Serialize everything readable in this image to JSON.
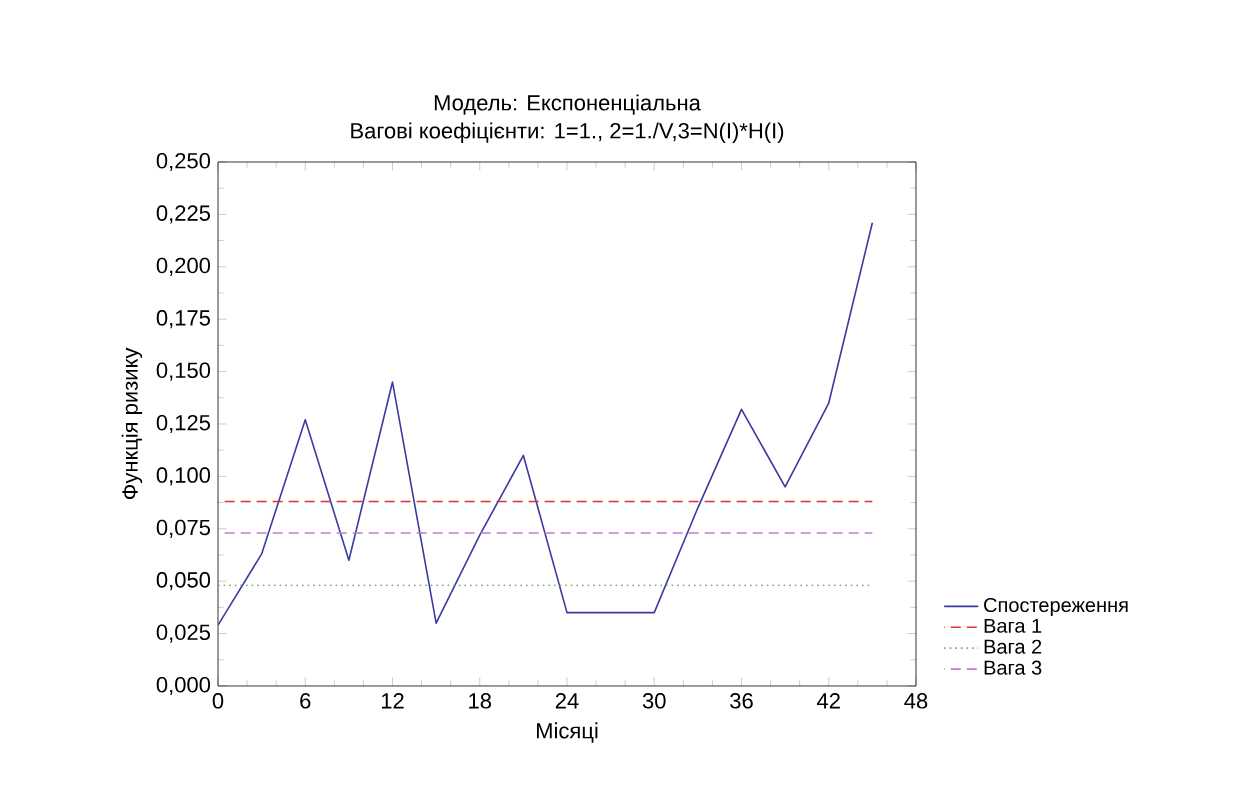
{
  "chart_data": {
    "type": "line",
    "title": "Модель: Експоненціальна",
    "subtitle": "Вагові коефіцієнти: 1=1., 2=1./V,3=N(I)*H(I)",
    "xlabel": "Місяці",
    "ylabel": "Функція ризику",
    "xlim": [
      0,
      48
    ],
    "xticks": [
      0,
      6,
      12,
      18,
      24,
      30,
      36,
      42,
      48
    ],
    "ylim": [
      0,
      0.25
    ],
    "yticks": [
      {
        "value": 0,
        "label": "0,000"
      },
      {
        "value": 0.025,
        "label": "0,025"
      },
      {
        "value": 0.05,
        "label": "0,050"
      },
      {
        "value": 0.075,
        "label": "0,075"
      },
      {
        "value": 0.1,
        "label": "0,100"
      },
      {
        "value": 0.125,
        "label": "0,125"
      },
      {
        "value": 0.15,
        "label": "0,150"
      },
      {
        "value": 0.175,
        "label": "0,175"
      },
      {
        "value": 0.2,
        "label": "0,200"
      },
      {
        "value": 0.225,
        "label": "0,225"
      },
      {
        "value": 0.25,
        "label": "0,250"
      }
    ],
    "grid": false,
    "legend": "bottom right",
    "marker": "none",
    "series": [
      {
        "name": "Спостереження",
        "color": "#3a3aa0",
        "line_style": "solid",
        "x": [
          0,
          3,
          6,
          9,
          12,
          15,
          18,
          21,
          24,
          27,
          30,
          33,
          36,
          39,
          42,
          45
        ],
        "values": [
          0.029,
          0.063,
          0.127,
          0.06,
          0.145,
          0.03,
          0.072,
          0.11,
          0.035,
          0.035,
          0.035,
          0.085,
          0.132,
          0.095,
          0.135,
          0.221
        ]
      },
      {
        "name": "Вага 1",
        "color": "#e03030",
        "line_style": "dashed",
        "x": [
          0,
          45
        ],
        "values": [
          0.088,
          0.088
        ]
      },
      {
        "name": "Вага 2",
        "color": "#6fa86f",
        "line_style": "dotted",
        "x": [
          0,
          45
        ],
        "values": [
          0.048,
          0.048
        ]
      },
      {
        "name": "Вага 3",
        "color": "#c47ad0",
        "line_style": "dashed",
        "x": [
          0,
          45
        ],
        "values": [
          0.073,
          0.073
        ]
      }
    ]
  }
}
